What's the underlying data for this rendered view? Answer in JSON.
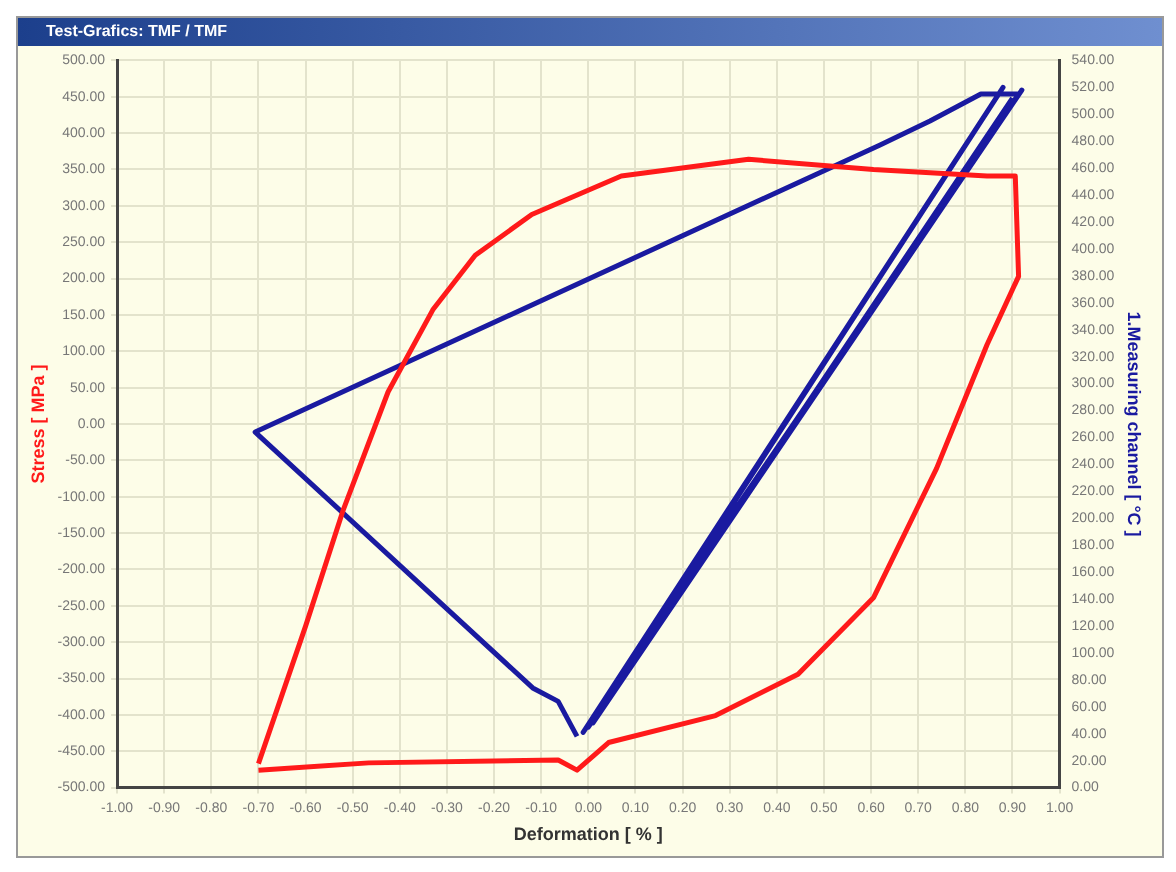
{
  "chart_data": {
    "type": "line",
    "title": "Test-Grafics: TMF / TMF",
    "xlabel": "Deformation [ % ]",
    "ylabel": "Stress [ MPa ]",
    "y2label": "1.Measuring channel [ °C ]",
    "grid": true,
    "marker": "none",
    "line_style": "solid",
    "xlim": [
      -1,
      1
    ],
    "xticks": [
      {
        "value": -1,
        "label": "-1.00"
      },
      {
        "value": -0.9,
        "label": "-0.90"
      },
      {
        "value": -0.8,
        "label": "-0.80"
      },
      {
        "value": -0.7,
        "label": "-0.70"
      },
      {
        "value": -0.6,
        "label": "-0.60"
      },
      {
        "value": -0.5,
        "label": "-0.50"
      },
      {
        "value": -0.4,
        "label": "-0.40"
      },
      {
        "value": -0.3,
        "label": "-0.30"
      },
      {
        "value": -0.2,
        "label": "-0.20"
      },
      {
        "value": -0.1,
        "label": "-0.10"
      },
      {
        "value": 0,
        "label": "0.00"
      },
      {
        "value": 0.1,
        "label": "0.10"
      },
      {
        "value": 0.2,
        "label": "0.20"
      },
      {
        "value": 0.3,
        "label": "0.30"
      },
      {
        "value": 0.4,
        "label": "0.40"
      },
      {
        "value": 0.5,
        "label": "0.50"
      },
      {
        "value": 0.6,
        "label": "0.60"
      },
      {
        "value": 0.7,
        "label": "0.70"
      },
      {
        "value": 0.8,
        "label": "0.80"
      },
      {
        "value": 0.9,
        "label": "0.90"
      },
      {
        "value": 1,
        "label": "1.00"
      }
    ],
    "ylim": [
      -500,
      500
    ],
    "yticks": [
      {
        "value": -500,
        "label": "-500.00"
      },
      {
        "value": -450,
        "label": "-450.00"
      },
      {
        "value": -400,
        "label": "-400.00"
      },
      {
        "value": -350,
        "label": "-350.00"
      },
      {
        "value": -300,
        "label": "-300.00"
      },
      {
        "value": -250,
        "label": "-250.00"
      },
      {
        "value": -200,
        "label": "-200.00"
      },
      {
        "value": -150,
        "label": "-150.00"
      },
      {
        "value": -100,
        "label": "-100.00"
      },
      {
        "value": -50,
        "label": "-50.00"
      },
      {
        "value": 0,
        "label": "0.00"
      },
      {
        "value": 50,
        "label": "50.00"
      },
      {
        "value": 100,
        "label": "100.00"
      },
      {
        "value": 150,
        "label": "150.00"
      },
      {
        "value": 200,
        "label": "200.00"
      },
      {
        "value": 250,
        "label": "250.00"
      },
      {
        "value": 300,
        "label": "300.00"
      },
      {
        "value": 350,
        "label": "350.00"
      },
      {
        "value": 400,
        "label": "400.00"
      },
      {
        "value": 450,
        "label": "450.00"
      },
      {
        "value": 500,
        "label": "500.00"
      }
    ],
    "y2lim": [
      0,
      540
    ],
    "y2ticks": [
      {
        "value": 0,
        "label": "0.00"
      },
      {
        "value": 20,
        "label": "20.00"
      },
      {
        "value": 40,
        "label": "40.00"
      },
      {
        "value": 60,
        "label": "60.00"
      },
      {
        "value": 80,
        "label": "80.00"
      },
      {
        "value": 100,
        "label": "100.00"
      },
      {
        "value": 120,
        "label": "120.00"
      },
      {
        "value": 140,
        "label": "140.00"
      },
      {
        "value": 160,
        "label": "160.00"
      },
      {
        "value": 180,
        "label": "180.00"
      },
      {
        "value": 200,
        "label": "200.00"
      },
      {
        "value": 220,
        "label": "220.00"
      },
      {
        "value": 240,
        "label": "240.00"
      },
      {
        "value": 260,
        "label": "260.00"
      },
      {
        "value": 280,
        "label": "280.00"
      },
      {
        "value": 300,
        "label": "300.00"
      },
      {
        "value": 320,
        "label": "320.00"
      },
      {
        "value": 340,
        "label": "340.00"
      },
      {
        "value": 360,
        "label": "360.00"
      },
      {
        "value": 380,
        "label": "380.00"
      },
      {
        "value": 400,
        "label": "400.00"
      },
      {
        "value": 420,
        "label": "420.00"
      },
      {
        "value": 440,
        "label": "440.00"
      },
      {
        "value": 460,
        "label": "460.00"
      },
      {
        "value": 480,
        "label": "480.00"
      },
      {
        "value": 500,
        "label": "500.00"
      },
      {
        "value": 520,
        "label": "520.00"
      },
      {
        "value": 540,
        "label": "540.00"
      }
    ],
    "series": [
      {
        "color": "#ff1a1a",
        "x": [
          -0.7,
          -0.6,
          -0.52,
          -0.425,
          -0.33,
          -0.24,
          -0.12,
          0.07,
          0.34,
          0.605,
          0.846,
          0.906,
          0.913,
          0.846,
          0.739,
          0.605,
          0.445,
          0.27,
          0.043,
          -0.024,
          -0.064,
          -0.466,
          -0.7
        ],
        "values": [
          -467,
          -278,
          -118,
          44,
          157,
          232,
          288,
          341,
          364,
          350,
          341,
          341,
          203,
          109,
          -61,
          -239,
          -344,
          -401,
          -438,
          -476,
          -462,
          -466,
          -476
        ]
      },
      {
        "color": "#1a1aa0",
        "axis": "y2",
        "x": [
          -0.024,
          -0.064,
          -0.118,
          -0.707,
          0.618,
          0.725,
          0.833,
          0.913,
          -0.011,
          0.88,
          0,
          0.92,
          0.01,
          0.9
        ],
        "values": [
          38,
          64,
          74,
          264,
          477,
          495,
          515,
          515,
          41,
          520,
          45,
          518,
          48,
          512
        ]
      }
    ]
  }
}
